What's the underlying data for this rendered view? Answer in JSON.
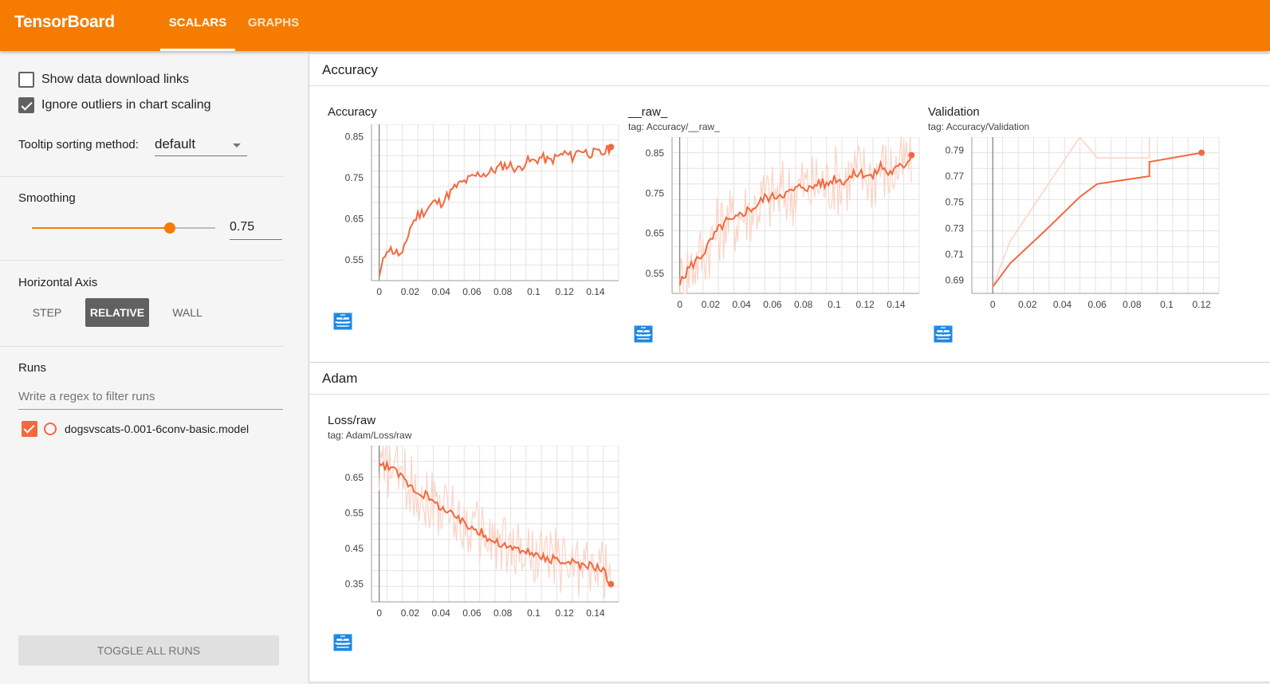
{
  "header": {
    "brand": "TensorBoard",
    "tabs": [
      {
        "label": "SCALARS",
        "active": true
      },
      {
        "label": "GRAPHS",
        "active": false
      }
    ],
    "accent_color": "#f57c00"
  },
  "sidebar": {
    "show_download_label": "Show data download links",
    "show_download_checked": false,
    "ignore_outliers_label": "Ignore outliers in chart scaling",
    "ignore_outliers_checked": true,
    "tooltip_label": "Tooltip sorting method:",
    "tooltip_value": "default",
    "smoothing_label": "Smoothing",
    "smoothing_value": "0.75",
    "smoothing_fraction": 0.75,
    "horizontal_axis_label": "Horizontal Axis",
    "axis_options": [
      "STEP",
      "RELATIVE",
      "WALL"
    ],
    "axis_selected": "RELATIVE",
    "runs_label": "Runs",
    "filter_placeholder": "Write a regex to filter runs",
    "runs": [
      {
        "name": "dogsvscats-0.001-6conv-basic.model",
        "checked": true,
        "color": "#f4683f"
      }
    ],
    "toggle_all": "TOGGLE ALL RUNS"
  },
  "categories": [
    {
      "name": "Accuracy"
    },
    {
      "name": "Adam"
    }
  ],
  "chart_data": [
    {
      "type": "line",
      "title": "Accuracy",
      "tag": "",
      "x_ticks": [
        "0",
        "0.02",
        "0.04",
        "0.06",
        "0.08",
        "0.1",
        "0.12",
        "0.14"
      ],
      "y_ticks": [
        "0.85",
        "0.75",
        "0.65",
        "0.55"
      ],
      "xlim": [
        -0.005,
        0.155
      ],
      "ylim": [
        0.5,
        0.88
      ],
      "color": "#f4683f",
      "x": [
        0,
        0.005,
        0.01,
        0.015,
        0.02,
        0.025,
        0.03,
        0.035,
        0.04,
        0.045,
        0.05,
        0.055,
        0.06,
        0.065,
        0.07,
        0.075,
        0.08,
        0.085,
        0.09,
        0.095,
        0.1,
        0.105,
        0.11,
        0.115,
        0.12,
        0.125,
        0.13,
        0.135,
        0.14,
        0.145,
        0.15
      ],
      "y": [
        0.51,
        0.58,
        0.57,
        0.56,
        0.63,
        0.66,
        0.67,
        0.69,
        0.69,
        0.71,
        0.73,
        0.74,
        0.75,
        0.76,
        0.76,
        0.77,
        0.78,
        0.78,
        0.77,
        0.79,
        0.79,
        0.8,
        0.79,
        0.8,
        0.81,
        0.8,
        0.82,
        0.81,
        0.81,
        0.81,
        0.825
      ]
    },
    {
      "type": "line",
      "title": "__raw_",
      "tag": "tag: Accuracy/__raw_",
      "x_ticks": [
        "0",
        "0.02",
        "0.04",
        "0.06",
        "0.08",
        "0.1",
        "0.12",
        "0.14"
      ],
      "y_ticks": [
        "0.85",
        "0.75",
        "0.65",
        "0.55"
      ],
      "xlim": [
        -0.005,
        0.155
      ],
      "ylim": [
        0.5,
        0.89
      ],
      "color": "#f4683f",
      "x": [
        0,
        0.005,
        0.01,
        0.015,
        0.02,
        0.025,
        0.03,
        0.035,
        0.04,
        0.045,
        0.05,
        0.055,
        0.06,
        0.065,
        0.07,
        0.075,
        0.08,
        0.085,
        0.09,
        0.095,
        0.1,
        0.105,
        0.11,
        0.115,
        0.12,
        0.125,
        0.13,
        0.135,
        0.14,
        0.145,
        0.15
      ],
      "y": [
        0.52,
        0.56,
        0.58,
        0.6,
        0.63,
        0.66,
        0.68,
        0.68,
        0.7,
        0.71,
        0.72,
        0.74,
        0.74,
        0.75,
        0.75,
        0.76,
        0.77,
        0.76,
        0.78,
        0.77,
        0.79,
        0.78,
        0.79,
        0.8,
        0.8,
        0.79,
        0.82,
        0.8,
        0.81,
        0.82,
        0.845
      ]
    },
    {
      "type": "line",
      "title": "Validation",
      "tag": "tag: Accuracy/Validation",
      "x_ticks": [
        "0",
        "0.02",
        "0.04",
        "0.06",
        "0.08",
        "0.1",
        "0.12"
      ],
      "y_ticks": [
        "0.79",
        "0.77",
        "0.75",
        "0.73",
        "0.71",
        "0.69"
      ],
      "xlim": [
        -0.012,
        0.13
      ],
      "ylim": [
        0.68,
        0.8
      ],
      "color": "#f4683f",
      "x": [
        0,
        0.01,
        0.03,
        0.05,
        0.06,
        0.09,
        0.09,
        0.12
      ],
      "y": [
        0.685,
        0.703,
        0.728,
        0.754,
        0.764,
        0.77,
        0.781,
        0.788
      ],
      "raw_x": [
        0,
        0.01,
        0.03,
        0.05,
        0.06,
        0.09,
        0.09
      ],
      "raw_y": [
        0.685,
        0.72,
        0.76,
        0.8,
        0.784,
        0.784,
        0.8
      ]
    },
    {
      "type": "line",
      "title": "Loss/raw",
      "tag": "tag: Adam/Loss/raw",
      "x_ticks": [
        "0",
        "0.02",
        "0.04",
        "0.06",
        "0.08",
        "0.1",
        "0.12",
        "0.14"
      ],
      "y_ticks": [
        "0.65",
        "0.55",
        "0.45",
        "0.35"
      ],
      "xlim": [
        -0.005,
        0.155
      ],
      "ylim": [
        0.3,
        0.74
      ],
      "color": "#f4683f",
      "x": [
        0,
        0.005,
        0.01,
        0.015,
        0.02,
        0.025,
        0.03,
        0.035,
        0.04,
        0.045,
        0.05,
        0.055,
        0.06,
        0.065,
        0.07,
        0.075,
        0.08,
        0.085,
        0.09,
        0.095,
        0.1,
        0.105,
        0.11,
        0.115,
        0.12,
        0.125,
        0.13,
        0.135,
        0.14,
        0.145,
        0.15
      ],
      "y": [
        0.69,
        0.68,
        0.67,
        0.65,
        0.63,
        0.61,
        0.6,
        0.58,
        0.57,
        0.55,
        0.54,
        0.52,
        0.51,
        0.5,
        0.48,
        0.47,
        0.46,
        0.45,
        0.45,
        0.44,
        0.43,
        0.43,
        0.42,
        0.42,
        0.41,
        0.41,
        0.4,
        0.4,
        0.4,
        0.39,
        0.35
      ]
    }
  ]
}
